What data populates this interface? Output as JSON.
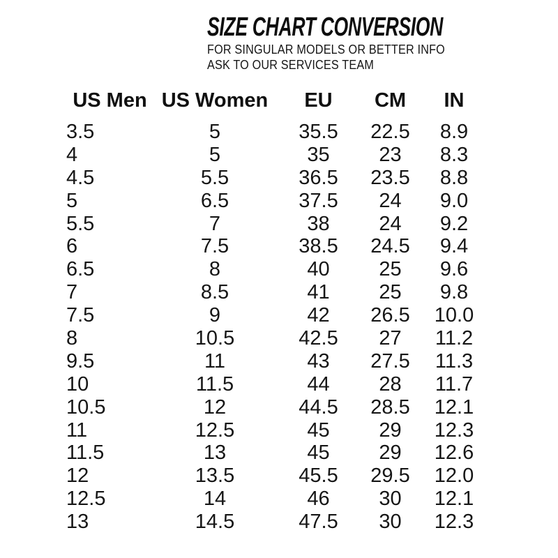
{
  "header": {
    "title": "SIZE CHART CONVERSION",
    "subtitle_line1": "FOR SINGULAR MODELS OR BETTER INFO",
    "subtitle_line2": "ASK TO OUR SERVICES TEAM"
  },
  "chart_data": {
    "type": "table",
    "title": "SIZE CHART CONVERSION",
    "columns": [
      "US Men",
      "US Women",
      "EU",
      "CM",
      "IN"
    ],
    "rows": [
      [
        "3.5",
        "5",
        "35.5",
        "22.5",
        "8.9"
      ],
      [
        "4",
        "5",
        "35",
        "23",
        "8.3"
      ],
      [
        "4.5",
        "5.5",
        "36.5",
        "23.5",
        "8.8"
      ],
      [
        "5",
        "6.5",
        "37.5",
        "24",
        "9.0"
      ],
      [
        "5.5",
        "7",
        "38",
        "24",
        "9.2"
      ],
      [
        "6",
        "7.5",
        "38.5",
        "24.5",
        "9.4"
      ],
      [
        "6.5",
        "8",
        "40",
        "25",
        "9.6"
      ],
      [
        "7",
        "8.5",
        "41",
        "25",
        "9.8"
      ],
      [
        "7.5",
        "9",
        "42",
        "26.5",
        "10.0"
      ],
      [
        "8",
        "10.5",
        "42.5",
        "27",
        "11.2"
      ],
      [
        "9.5",
        "11",
        "43",
        "27.5",
        "11.3"
      ],
      [
        "10",
        "11.5",
        "44",
        "28",
        "11.7"
      ],
      [
        "10.5",
        "12",
        "44.5",
        "28.5",
        "12.1"
      ],
      [
        "11",
        "12.5",
        "45",
        "29",
        "12.3"
      ],
      [
        "11.5",
        "13",
        "45",
        "29",
        "12.6"
      ],
      [
        "12",
        "13.5",
        "45.5",
        "29.5",
        "12.0"
      ],
      [
        "12.5",
        "14",
        "46",
        "30",
        "12.1"
      ],
      [
        "13",
        "14.5",
        "47.5",
        "30",
        "12.3"
      ]
    ]
  },
  "colors": {
    "text": "#141414",
    "background": "#ffffff"
  }
}
